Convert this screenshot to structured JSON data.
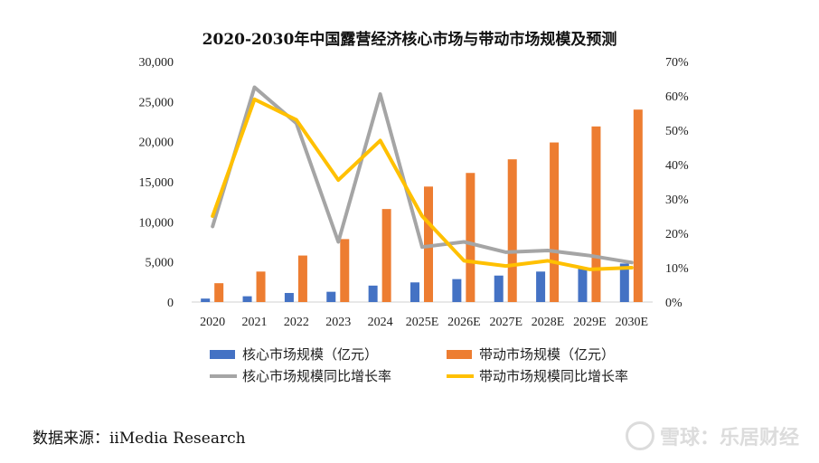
{
  "chart_data": {
    "type": "bar",
    "title": "2020-2030年中国露营经济核心市场与带动市场规模及预测",
    "categories": [
      "2020",
      "2021",
      "2022",
      "2023",
      "2024",
      "2025E",
      "2026E",
      "2027E",
      "2028E",
      "2029E",
      "2030E"
    ],
    "y_left": {
      "ylim": [
        0,
        30000
      ],
      "ticks": [
        "0",
        "5,000",
        "10,000",
        "15,000",
        "20,000",
        "25,000",
        "30,000"
      ]
    },
    "y_right": {
      "ylim": [
        0,
        70
      ],
      "ticks": [
        "0%",
        "10%",
        "20%",
        "30%",
        "40%",
        "50%",
        "60%",
        "70%"
      ]
    },
    "series": [
      {
        "name": "核心市场规模（亿元）",
        "type": "bar",
        "axis": "left",
        "color": "#4472C4",
        "values": [
          430,
          720,
          1130,
          1280,
          2050,
          2450,
          2860,
          3300,
          3800,
          4200,
          4800
        ]
      },
      {
        "name": "带动市场规模（亿元）",
        "type": "bar",
        "axis": "left",
        "color": "#ED7D31",
        "values": [
          2350,
          3800,
          5800,
          7850,
          11600,
          14400,
          16100,
          17800,
          19900,
          21900,
          24000
        ]
      },
      {
        "name": "核心市场规模同比增长率",
        "type": "line",
        "axis": "right",
        "color": "#A5A5A5",
        "values": [
          22,
          62.5,
          52,
          17.5,
          60.5,
          16,
          17.5,
          14.5,
          15,
          13.5,
          11.5
        ]
      },
      {
        "name": "带动市场规模同比增长率",
        "type": "line",
        "axis": "right",
        "color": "#FFC000",
        "values": [
          25,
          59,
          53,
          35.5,
          47,
          25,
          12,
          10.5,
          12,
          9.5,
          10
        ]
      }
    ],
    "legend_position": "bottom",
    "grid": false
  },
  "source_text": "数据来源：iiMedia Research",
  "watermark_text": "雪球：乐居财经"
}
